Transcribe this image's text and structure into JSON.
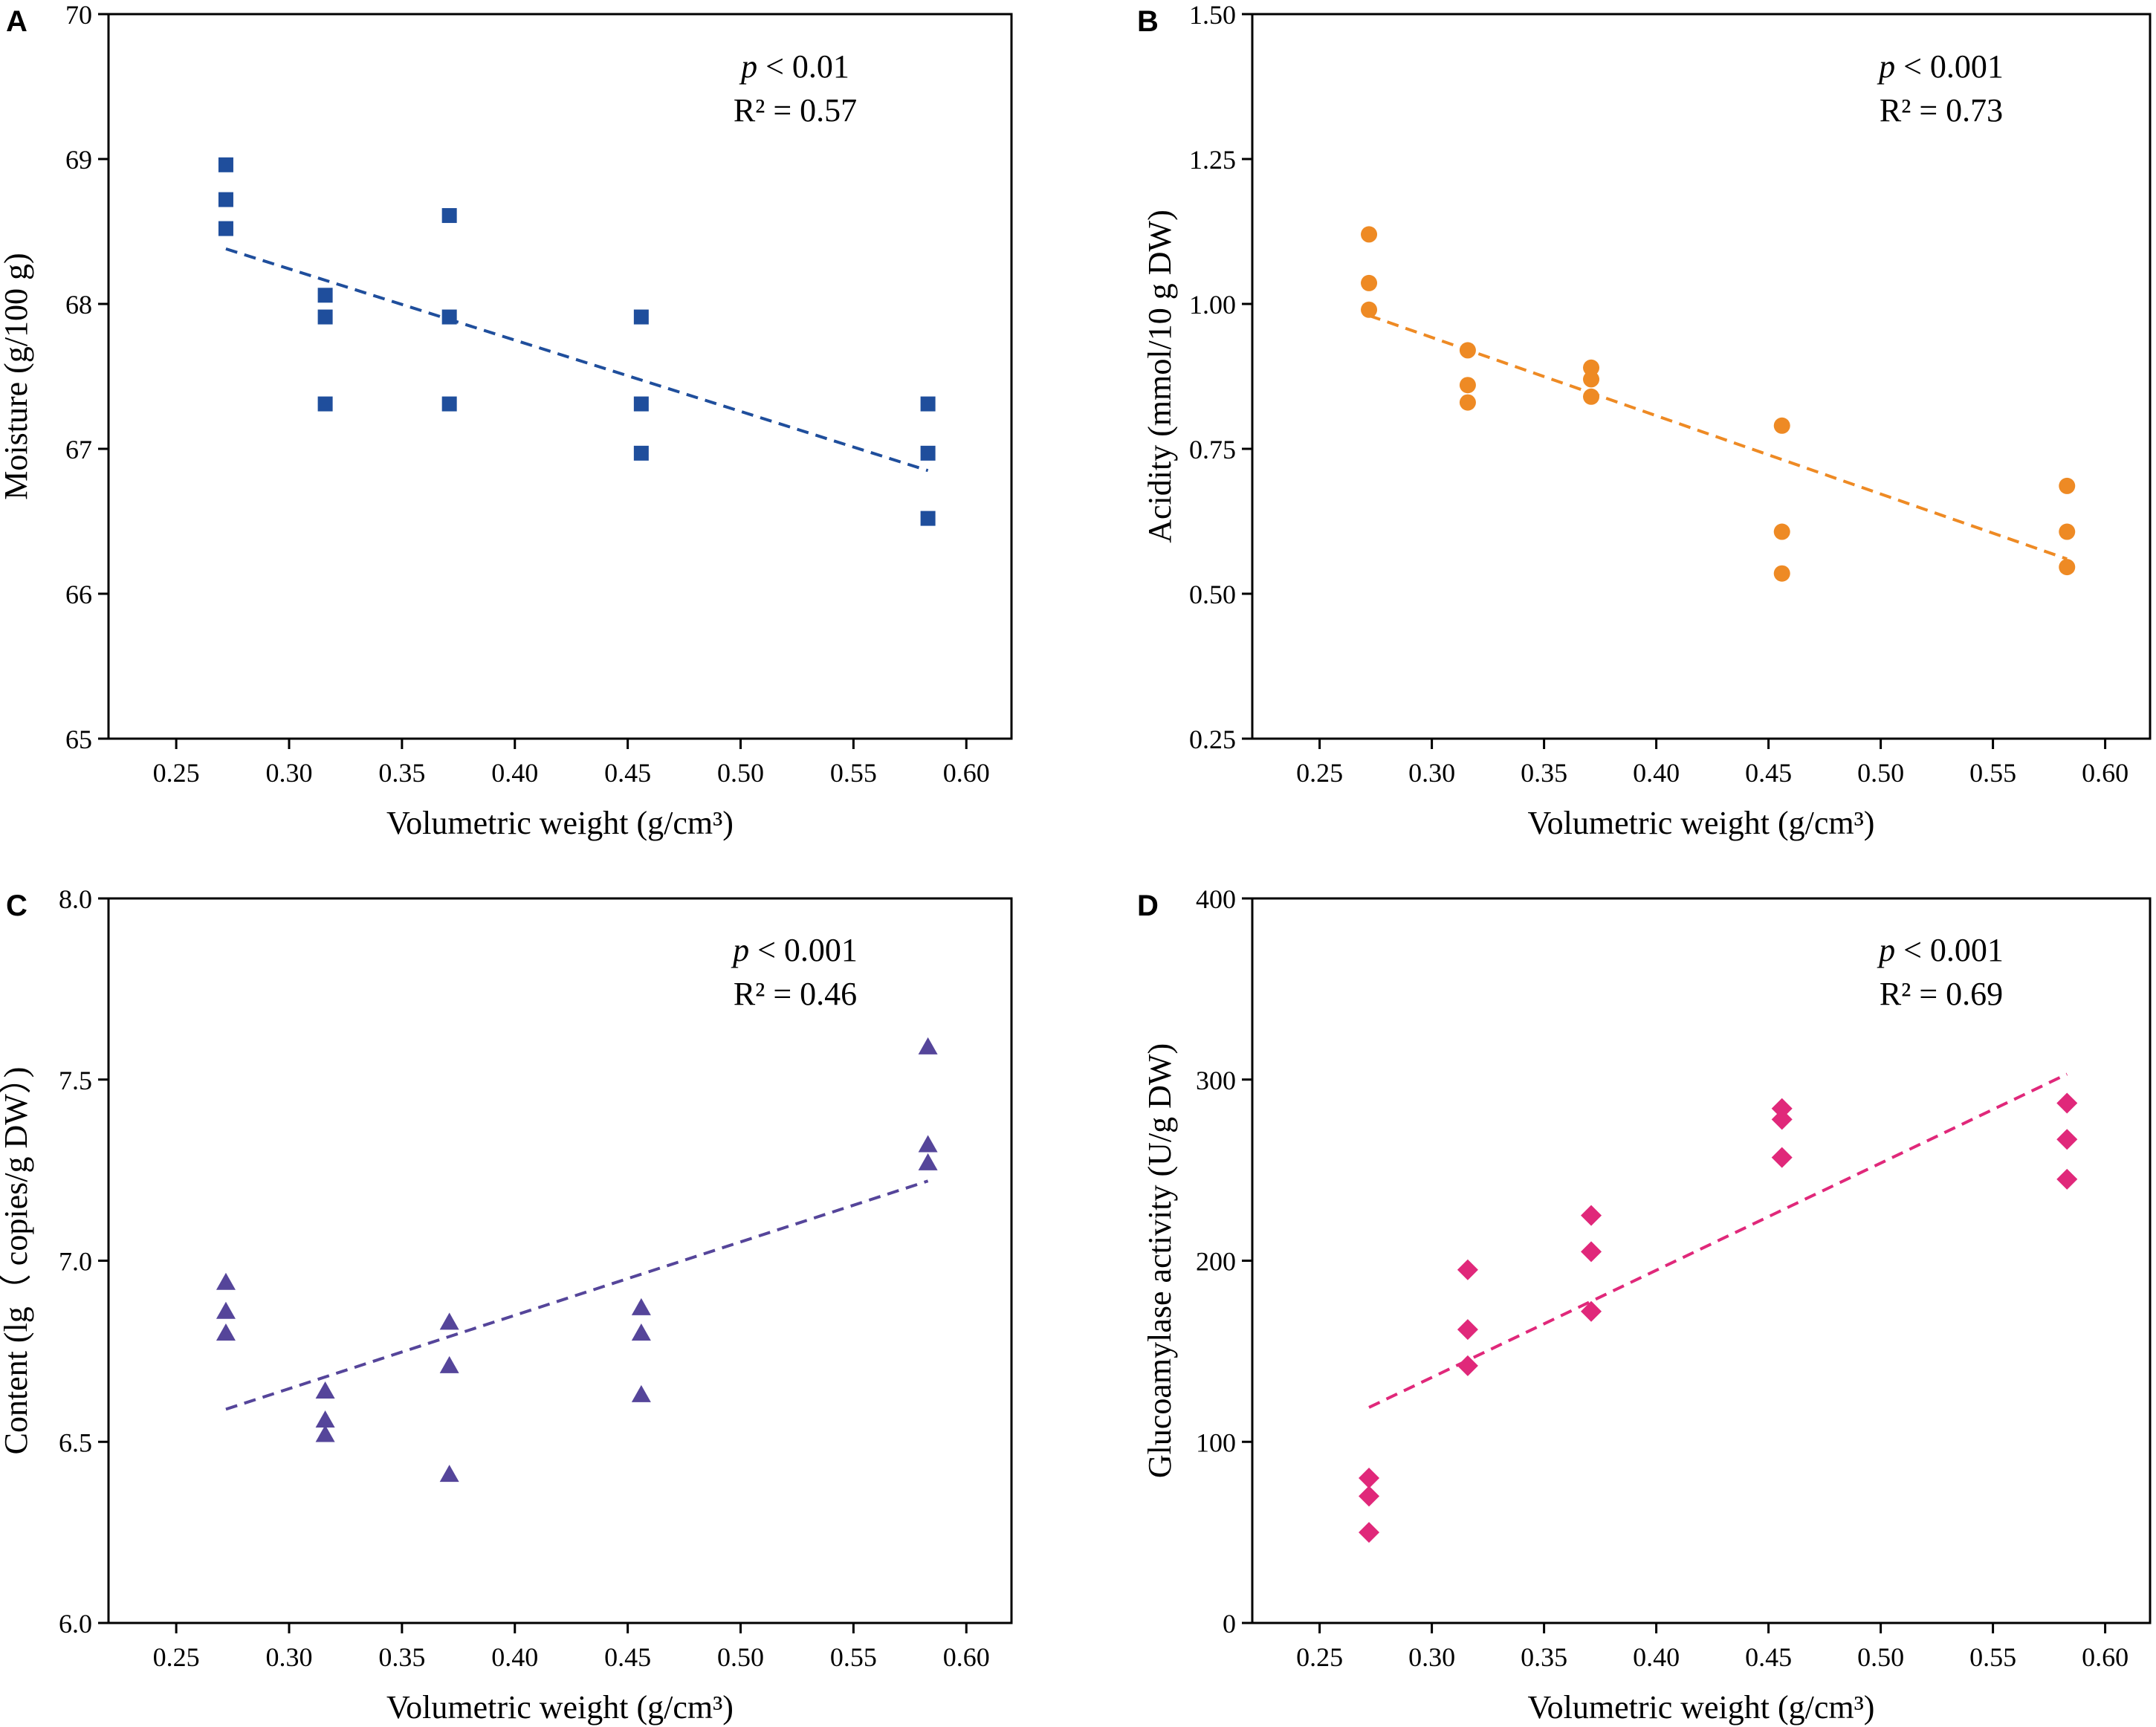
{
  "chart_data": [
    {
      "panel": "A",
      "type": "scatter",
      "xlabel": "Volumetric weight (g/cm³)",
      "ylabel": "Moisture (g/100 g)",
      "xlim": [
        0.22,
        0.62
      ],
      "ylim": [
        65,
        70
      ],
      "xticks": [
        0.25,
        0.3,
        0.35,
        0.4,
        0.45,
        0.5,
        0.55,
        0.6
      ],
      "xtick_labels": [
        "0.25",
        "0.30",
        "0.35",
        "0.40",
        "0.45",
        "0.50",
        "0.55",
        "0.60"
      ],
      "yticks": [
        65,
        66,
        67,
        68,
        69,
        70
      ],
      "ytick_labels": [
        "65",
        "66",
        "67",
        "68",
        "69",
        "70"
      ],
      "marker": "square",
      "color": "#1f4e9c",
      "points": [
        [
          0.272,
          68.96
        ],
        [
          0.272,
          68.72
        ],
        [
          0.272,
          68.52
        ],
        [
          0.316,
          68.06
        ],
        [
          0.316,
          67.91
        ],
        [
          0.316,
          67.31
        ],
        [
          0.371,
          68.61
        ],
        [
          0.371,
          67.91
        ],
        [
          0.371,
          67.31
        ],
        [
          0.456,
          67.91
        ],
        [
          0.456,
          67.31
        ],
        [
          0.456,
          66.97
        ],
        [
          0.583,
          67.31
        ],
        [
          0.583,
          66.97
        ],
        [
          0.583,
          66.52
        ]
      ],
      "fit_line": [
        [
          0.272,
          68.38
        ],
        [
          0.583,
          66.85
        ]
      ],
      "annotation": {
        "p_symbol": "p",
        "p_text": " < 0.01",
        "r2_text": "R² = 0.57"
      }
    },
    {
      "panel": "B",
      "type": "scatter",
      "xlabel": "Volumetric weight (g/cm³)",
      "ylabel": "Acidity (mmol/10 g DW)",
      "xlim": [
        0.22,
        0.62
      ],
      "ylim": [
        0.25,
        1.5
      ],
      "xticks": [
        0.25,
        0.3,
        0.35,
        0.4,
        0.45,
        0.5,
        0.55,
        0.6
      ],
      "xtick_labels": [
        "0.25",
        "0.30",
        "0.35",
        "0.40",
        "0.45",
        "0.50",
        "0.55",
        "0.60"
      ],
      "yticks": [
        0.25,
        0.5,
        0.75,
        1.0,
        1.25,
        1.5
      ],
      "ytick_labels": [
        "0.25",
        "0.50",
        "0.75",
        "1.00",
        "1.25",
        "1.50"
      ],
      "marker": "circle",
      "color": "#ee8a24",
      "points": [
        [
          0.272,
          1.12
        ],
        [
          0.272,
          1.036
        ],
        [
          0.272,
          0.99
        ],
        [
          0.316,
          0.92
        ],
        [
          0.316,
          0.86
        ],
        [
          0.316,
          0.83
        ],
        [
          0.371,
          0.89
        ],
        [
          0.371,
          0.87
        ],
        [
          0.371,
          0.84
        ],
        [
          0.456,
          0.79
        ],
        [
          0.456,
          0.607
        ],
        [
          0.456,
          0.535
        ],
        [
          0.583,
          0.686
        ],
        [
          0.583,
          0.607
        ],
        [
          0.583,
          0.546
        ]
      ],
      "fit_line": [
        [
          0.272,
          0.98
        ],
        [
          0.583,
          0.56
        ]
      ],
      "annotation": {
        "p_symbol": "p",
        "p_text": " < 0.001",
        "r2_text": "R² = 0.73"
      }
    },
    {
      "panel": "C",
      "type": "scatter",
      "xlabel": "Volumetric weight (g/cm³)",
      "ylabel": "Content (lg（ copies/g DW）)",
      "xlim": [
        0.22,
        0.62
      ],
      "ylim": [
        6.0,
        8.0
      ],
      "xticks": [
        0.25,
        0.3,
        0.35,
        0.4,
        0.45,
        0.5,
        0.55,
        0.6
      ],
      "xtick_labels": [
        "0.25",
        "0.30",
        "0.35",
        "0.40",
        "0.45",
        "0.50",
        "0.55",
        "0.60"
      ],
      "yticks": [
        6.0,
        6.5,
        7.0,
        7.5,
        8.0
      ],
      "ytick_labels": [
        "6.0",
        "6.5",
        "7.0",
        "7.5",
        "8.0"
      ],
      "marker": "triangle",
      "color": "#55459a",
      "points": [
        [
          0.272,
          6.94
        ],
        [
          0.272,
          6.86
        ],
        [
          0.272,
          6.8
        ],
        [
          0.316,
          6.64
        ],
        [
          0.316,
          6.56
        ],
        [
          0.316,
          6.52
        ],
        [
          0.371,
          6.83
        ],
        [
          0.371,
          6.71
        ],
        [
          0.371,
          6.41
        ],
        [
          0.456,
          6.87
        ],
        [
          0.456,
          6.8
        ],
        [
          0.456,
          6.63
        ],
        [
          0.583,
          7.59
        ],
        [
          0.583,
          7.32
        ],
        [
          0.583,
          7.27
        ]
      ],
      "fit_line": [
        [
          0.272,
          6.59
        ],
        [
          0.583,
          7.22
        ]
      ],
      "annotation": {
        "p_symbol": "p",
        "p_text": " < 0.001",
        "r2_text": "R² = 0.46"
      }
    },
    {
      "panel": "D",
      "type": "scatter",
      "xlabel": "Volumetric weight (g/cm³)",
      "ylabel": "Glucoamylase activity (U/g DW)",
      "xlim": [
        0.22,
        0.62
      ],
      "ylim": [
        0,
        400
      ],
      "xticks": [
        0.25,
        0.3,
        0.35,
        0.4,
        0.45,
        0.5,
        0.55,
        0.6
      ],
      "xtick_labels": [
        "0.25",
        "0.30",
        "0.35",
        "0.40",
        "0.45",
        "0.50",
        "0.55",
        "0.60"
      ],
      "yticks": [
        0,
        100,
        200,
        300,
        400
      ],
      "ytick_labels": [
        "0",
        "100",
        "200",
        "300",
        "400"
      ],
      "marker": "diamond",
      "color": "#e0287a",
      "points": [
        [
          0.272,
          80
        ],
        [
          0.272,
          70
        ],
        [
          0.272,
          50
        ],
        [
          0.316,
          195
        ],
        [
          0.316,
          162
        ],
        [
          0.316,
          142
        ],
        [
          0.371,
          225
        ],
        [
          0.371,
          205
        ],
        [
          0.371,
          172
        ],
        [
          0.456,
          284
        ],
        [
          0.456,
          278
        ],
        [
          0.456,
          257
        ],
        [
          0.583,
          287
        ],
        [
          0.583,
          267
        ],
        [
          0.583,
          245
        ]
      ],
      "fit_line": [
        [
          0.272,
          119
        ],
        [
          0.583,
          303
        ]
      ],
      "annotation": {
        "p_symbol": "p",
        "p_text": " < 0.001",
        "r2_text": "R² = 0.69"
      }
    }
  ]
}
